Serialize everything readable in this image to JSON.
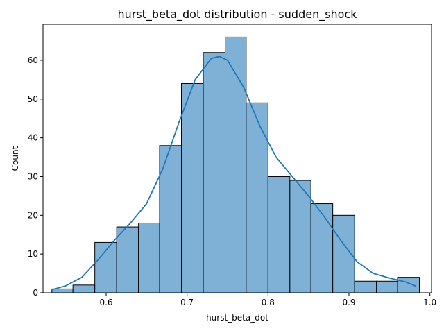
{
  "chart_data": {
    "type": "bar",
    "subtype": "histogram_with_kde",
    "title": "hurst_beta_dot distribution - sudden_shock",
    "xlabel": "hurst_beta_dot",
    "ylabel": "Count",
    "xlim": [
      0.522,
      1.002
    ],
    "ylim": [
      0,
      69.3
    ],
    "xticks": [
      0.6,
      0.7,
      0.8,
      0.9,
      1.0
    ],
    "xtick_labels": [
      "0.6",
      "0.7",
      "0.8",
      "0.9",
      "1.0"
    ],
    "yticks": [
      0,
      10,
      20,
      30,
      40,
      50,
      60
    ],
    "ytick_labels": [
      "0",
      "10",
      "20",
      "30",
      "40",
      "50",
      "60"
    ],
    "grid": false,
    "legend": "none",
    "colors": {
      "bar_fill": "#7fb0d6",
      "bar_edge": "#000000",
      "kde_line": "#1f77b4"
    },
    "bins": [
      {
        "x0": 0.533,
        "x1": 0.559,
        "count": 1
      },
      {
        "x0": 0.559,
        "x1": 0.586,
        "count": 2
      },
      {
        "x0": 0.586,
        "x1": 0.613,
        "count": 13
      },
      {
        "x0": 0.613,
        "x1": 0.64,
        "count": 17
      },
      {
        "x0": 0.64,
        "x1": 0.666,
        "count": 18
      },
      {
        "x0": 0.666,
        "x1": 0.693,
        "count": 38
      },
      {
        "x0": 0.693,
        "x1": 0.72,
        "count": 54
      },
      {
        "x0": 0.72,
        "x1": 0.747,
        "count": 62
      },
      {
        "x0": 0.747,
        "x1": 0.773,
        "count": 66
      },
      {
        "x0": 0.773,
        "x1": 0.8,
        "count": 49
      },
      {
        "x0": 0.8,
        "x1": 0.827,
        "count": 30
      },
      {
        "x0": 0.827,
        "x1": 0.853,
        "count": 29
      },
      {
        "x0": 0.853,
        "x1": 0.88,
        "count": 23
      },
      {
        "x0": 0.88,
        "x1": 0.907,
        "count": 20
      },
      {
        "x0": 0.907,
        "x1": 0.934,
        "count": 3
      },
      {
        "x0": 0.934,
        "x1": 0.96,
        "count": 3
      },
      {
        "x0": 0.96,
        "x1": 0.987,
        "count": 4
      }
    ],
    "kde": {
      "x": [
        0.533,
        0.55,
        0.57,
        0.59,
        0.61,
        0.63,
        0.65,
        0.67,
        0.69,
        0.71,
        0.73,
        0.74,
        0.75,
        0.77,
        0.79,
        0.81,
        0.83,
        0.85,
        0.87,
        0.89,
        0.91,
        0.93,
        0.95,
        0.97,
        0.983
      ],
      "y": [
        0.8,
        1.8,
        4.0,
        8.5,
        13.5,
        18.0,
        23.0,
        32.0,
        44.0,
        55.0,
        60.5,
        61.0,
        60.0,
        53.0,
        43.0,
        35.0,
        30.0,
        25.0,
        19.5,
        13.5,
        8.0,
        5.0,
        3.8,
        2.8,
        1.7
      ]
    }
  }
}
